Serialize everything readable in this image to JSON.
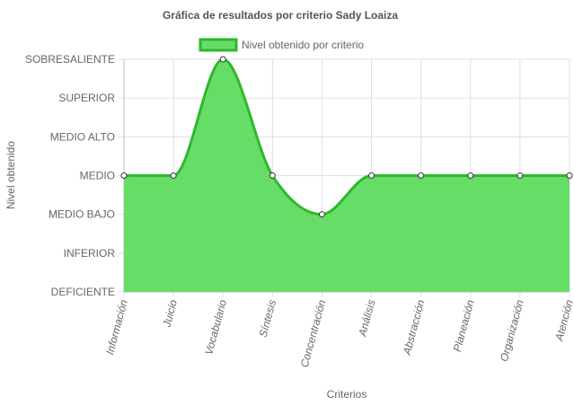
{
  "chart_data": {
    "type": "area",
    "title": "Gráfica de resultados por criterio Sady Loaiza",
    "xlabel": "Criterios",
    "ylabel": "Nivel obtenido",
    "y_levels": [
      "DEFICIENTE",
      "INFERIOR",
      "MEDIO BAJO",
      "MEDIO",
      "MEDIO ALTO",
      "SUPERIOR",
      "SOBRESALIENTE"
    ],
    "categories": [
      "Información",
      "Juicio",
      "Vocabulario",
      "Síntesis",
      "Concentración",
      "Análisis",
      "Abstracción",
      "Planeación",
      "Organización",
      "Atención"
    ],
    "series": [
      {
        "name": "Nivel obtenido por criterio",
        "values": [
          "MEDIO",
          "MEDIO",
          "SOBRESALIENTE",
          "MEDIO",
          "MEDIO BAJO",
          "MEDIO",
          "MEDIO",
          "MEDIO",
          "MEDIO",
          "MEDIO"
        ]
      }
    ],
    "legend_position": "top",
    "grid": true,
    "colors": {
      "fill": "#66dd66",
      "line": "#2eb82e",
      "point_fill": "#ffffff",
      "point_stroke": "#333333"
    }
  }
}
